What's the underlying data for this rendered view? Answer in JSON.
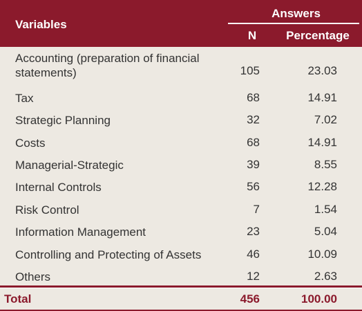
{
  "colors": {
    "header_bg": "#8b1a2c",
    "body_bg": "#ede9e2",
    "total_text": "#8b1a2c"
  },
  "header": {
    "variables": "Variables",
    "answers": "Answers",
    "n": "N",
    "percentage": "Percentage"
  },
  "rows": [
    {
      "label": "Accounting (preparation of financial\nstatements)",
      "n": "105",
      "pct": "23.03"
    },
    {
      "label": "Tax",
      "n": "68",
      "pct": "14.91"
    },
    {
      "label": "Strategic Planning",
      "n": "32",
      "pct": "7.02"
    },
    {
      "label": "Costs",
      "n": "68",
      "pct": "14.91"
    },
    {
      "label": "Managerial-Strategic",
      "n": "39",
      "pct": "8.55"
    },
    {
      "label": "Internal Controls",
      "n": "56",
      "pct": "12.28"
    },
    {
      "label": "Risk Control",
      "n": "7",
      "pct": "1.54"
    },
    {
      "label": "Information Management",
      "n": "23",
      "pct": "5.04"
    },
    {
      "label": "Controlling and Protecting of Assets",
      "n": "46",
      "pct": "10.09"
    },
    {
      "label": "Others",
      "n": "12",
      "pct": "2.63"
    }
  ],
  "total": {
    "label": "Total",
    "n": "456",
    "pct": "100.00"
  }
}
